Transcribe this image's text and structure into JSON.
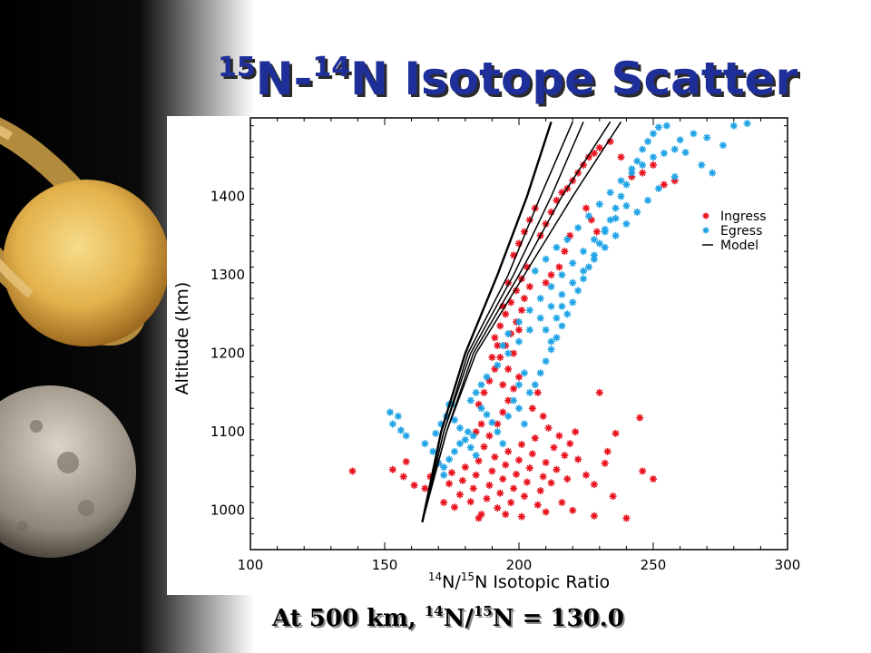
{
  "slide": {
    "title_sup1": "15",
    "title_n1": "N-",
    "title_sup2": "14",
    "title_rest": "N Isotope Scatter",
    "caption_pre": "At 500 km, ",
    "caption_sup1": "14",
    "caption_mid": "N/",
    "caption_sup2": "15",
    "caption_post": "N = 130.0"
  },
  "chart_data": {
    "type": "scatter",
    "xlabel_sup1": "14",
    "xlabel_mid": "N/",
    "xlabel_sup2": "15",
    "xlabel_post": "N Isotopic Ratio",
    "ylabel": "Altitude (km)",
    "xlim": [
      100,
      300
    ],
    "ylim": [
      950,
      1500
    ],
    "xticks": [
      "100",
      "150",
      "200",
      "250",
      "300"
    ],
    "yticks": [
      "1000",
      "1100",
      "1200",
      "1300",
      "1400"
    ],
    "legend_position": "right",
    "series": [
      {
        "name": "Ingress",
        "color": "#e8121e",
        "marker": "asterisk",
        "points": [
          [
            138,
            1050
          ],
          [
            153,
            1052
          ],
          [
            157,
            1043
          ],
          [
            158,
            1062
          ],
          [
            161,
            1032
          ],
          [
            165,
            1028
          ],
          [
            167,
            1043
          ],
          [
            170,
            1060
          ],
          [
            172,
            1010
          ],
          [
            174,
            1034
          ],
          [
            175,
            1048
          ],
          [
            176,
            1004
          ],
          [
            178,
            1020
          ],
          [
            179,
            1038
          ],
          [
            180,
            1055
          ],
          [
            182,
            1011
          ],
          [
            183,
            1028
          ],
          [
            184,
            1045
          ],
          [
            185,
            1063
          ],
          [
            186,
            995
          ],
          [
            187,
            1081
          ],
          [
            188,
            1015
          ],
          [
            189,
            1032
          ],
          [
            190,
            1050
          ],
          [
            191,
            1068
          ],
          [
            192,
            1003
          ],
          [
            193,
            1022
          ],
          [
            194,
            1040
          ],
          [
            195,
            1058
          ],
          [
            196,
            1075
          ],
          [
            197,
            1010
          ],
          [
            198,
            1028
          ],
          [
            199,
            1046
          ],
          [
            200,
            1064
          ],
          [
            201,
            1084
          ],
          [
            202,
            1018
          ],
          [
            203,
            1036
          ],
          [
            204,
            1054
          ],
          [
            205,
            1072
          ],
          [
            206,
            1092
          ],
          [
            207,
            1007
          ],
          [
            208,
            1025
          ],
          [
            209,
            1043
          ],
          [
            210,
            1061
          ],
          [
            212,
            1035
          ],
          [
            214,
            1052
          ],
          [
            216,
            1010
          ],
          [
            218,
            1040
          ],
          [
            220,
            1000
          ],
          [
            222,
            1065
          ],
          [
            225,
            1045
          ],
          [
            228,
            1033
          ],
          [
            232,
            1060
          ],
          [
            235,
            1018
          ],
          [
            240,
            990
          ],
          [
            246,
            1050
          ],
          [
            250,
            1040
          ],
          [
            245,
            1118
          ],
          [
            236,
            1098
          ],
          [
            233,
            1075
          ],
          [
            195,
            995
          ],
          [
            201,
            992
          ],
          [
            210,
            998
          ],
          [
            228,
            993
          ],
          [
            185,
            990
          ],
          [
            189,
            1095
          ],
          [
            192,
            1110
          ],
          [
            194,
            1125
          ],
          [
            196,
            1140
          ],
          [
            198,
            1155
          ],
          [
            200,
            1170
          ],
          [
            185,
            1135
          ],
          [
            187,
            1150
          ],
          [
            189,
            1165
          ],
          [
            191,
            1180
          ],
          [
            193,
            1195
          ],
          [
            195,
            1210
          ],
          [
            197,
            1225
          ],
          [
            199,
            1240
          ],
          [
            201,
            1255
          ],
          [
            191,
            1220
          ],
          [
            193,
            1235
          ],
          [
            195,
            1250
          ],
          [
            197,
            1265
          ],
          [
            199,
            1280
          ],
          [
            201,
            1295
          ],
          [
            203,
            1310
          ],
          [
            190,
            1195
          ],
          [
            192,
            1210
          ],
          [
            194,
            1260
          ],
          [
            196,
            1290
          ],
          [
            204,
            1285
          ],
          [
            202,
            1270
          ],
          [
            200,
            1230
          ],
          [
            198,
            1200
          ],
          [
            196,
            1180
          ],
          [
            194,
            1160
          ],
          [
            186,
            1110
          ],
          [
            184,
            1100
          ],
          [
            205,
            1130
          ],
          [
            207,
            1150
          ],
          [
            209,
            1120
          ],
          [
            211,
            1105
          ],
          [
            213,
            1080
          ],
          [
            215,
            1095
          ],
          [
            217,
            1070
          ],
          [
            219,
            1085
          ],
          [
            221,
            1100
          ],
          [
            230,
            1150
          ],
          [
            198,
            1325
          ],
          [
            200,
            1340
          ],
          [
            202,
            1355
          ],
          [
            204,
            1370
          ],
          [
            206,
            1385
          ],
          [
            208,
            1350
          ],
          [
            210,
            1365
          ],
          [
            212,
            1380
          ],
          [
            214,
            1395
          ],
          [
            216,
            1405
          ],
          [
            218,
            1410
          ],
          [
            220,
            1420
          ],
          [
            222,
            1430
          ],
          [
            224,
            1440
          ],
          [
            226,
            1450
          ],
          [
            228,
            1455
          ],
          [
            230,
            1462
          ],
          [
            234,
            1470
          ],
          [
            238,
            1450
          ],
          [
            242,
            1425
          ],
          [
            246,
            1430
          ],
          [
            250,
            1440
          ],
          [
            254,
            1415
          ],
          [
            258,
            1420
          ],
          [
            225,
            1385
          ],
          [
            227,
            1370
          ],
          [
            229,
            1355
          ],
          [
            219,
            1350
          ],
          [
            217,
            1330
          ],
          [
            215,
            1310
          ],
          [
            212,
            1300
          ],
          [
            210,
            1290
          ]
        ]
      },
      {
        "name": "Egress",
        "color": "#1ea3e6",
        "marker": "asterisk",
        "points": [
          [
            152,
            1125
          ],
          [
            155,
            1120
          ],
          [
            153,
            1110
          ],
          [
            156,
            1102
          ],
          [
            158,
            1095
          ],
          [
            165,
            1085
          ],
          [
            168,
            1075
          ],
          [
            170,
            1060
          ],
          [
            172,
            1045
          ],
          [
            174,
            1135
          ],
          [
            176,
            1115
          ],
          [
            178,
            1105
          ],
          [
            180,
            1090
          ],
          [
            182,
            1080
          ],
          [
            184,
            1070
          ],
          [
            186,
            1130
          ],
          [
            188,
            1122
          ],
          [
            190,
            1112
          ],
          [
            192,
            1100
          ],
          [
            194,
            1085
          ],
          [
            196,
            1120
          ],
          [
            198,
            1140
          ],
          [
            200,
            1130
          ],
          [
            202,
            1110
          ],
          [
            204,
            1150
          ],
          [
            206,
            1160
          ],
          [
            208,
            1175
          ],
          [
            210,
            1190
          ],
          [
            212,
            1205
          ],
          [
            214,
            1220
          ],
          [
            216,
            1235
          ],
          [
            218,
            1250
          ],
          [
            220,
            1265
          ],
          [
            222,
            1280
          ],
          [
            224,
            1295
          ],
          [
            226,
            1310
          ],
          [
            228,
            1325
          ],
          [
            230,
            1340
          ],
          [
            232,
            1355
          ],
          [
            234,
            1370
          ],
          [
            236,
            1385
          ],
          [
            238,
            1400
          ],
          [
            240,
            1415
          ],
          [
            242,
            1430
          ],
          [
            244,
            1445
          ],
          [
            246,
            1460
          ],
          [
            248,
            1470
          ],
          [
            250,
            1480
          ],
          [
            252,
            1488
          ],
          [
            255,
            1490
          ],
          [
            260,
            1472
          ],
          [
            265,
            1480
          ],
          [
            270,
            1475
          ],
          [
            276,
            1465
          ],
          [
            280,
            1490
          ],
          [
            285,
            1493
          ],
          [
            262,
            1456
          ],
          [
            268,
            1440
          ],
          [
            272,
            1430
          ],
          [
            258,
            1425
          ],
          [
            252,
            1410
          ],
          [
            248,
            1395
          ],
          [
            244,
            1380
          ],
          [
            240,
            1365
          ],
          [
            236,
            1350
          ],
          [
            232,
            1335
          ],
          [
            228,
            1320
          ],
          [
            224,
            1305
          ],
          [
            220,
            1290
          ],
          [
            216,
            1275
          ],
          [
            212,
            1260
          ],
          [
            208,
            1245
          ],
          [
            204,
            1230
          ],
          [
            200,
            1215
          ],
          [
            196,
            1200
          ],
          [
            192,
            1185
          ],
          [
            188,
            1170
          ],
          [
            186,
            1160
          ],
          [
            184,
            1150
          ],
          [
            182,
            1140
          ],
          [
            181,
            1100
          ],
          [
            183,
            1095
          ],
          [
            178,
            1085
          ],
          [
            176,
            1075
          ],
          [
            174,
            1065
          ],
          [
            172,
            1055
          ],
          [
            175,
            1135
          ],
          [
            173,
            1120
          ],
          [
            171,
            1110
          ],
          [
            169,
            1098
          ],
          [
            206,
            1305
          ],
          [
            210,
            1320
          ],
          [
            214,
            1335
          ],
          [
            218,
            1345
          ],
          [
            222,
            1360
          ],
          [
            226,
            1375
          ],
          [
            230,
            1390
          ],
          [
            234,
            1405
          ],
          [
            238,
            1420
          ],
          [
            242,
            1435
          ],
          [
            246,
            1440
          ],
          [
            250,
            1450
          ],
          [
            254,
            1455
          ],
          [
            258,
            1460
          ],
          [
            240,
            1388
          ],
          [
            236,
            1372
          ],
          [
            232,
            1358
          ],
          [
            228,
            1345
          ],
          [
            224,
            1330
          ],
          [
            220,
            1315
          ],
          [
            216,
            1300
          ],
          [
            212,
            1285
          ],
          [
            208,
            1270
          ],
          [
            204,
            1255
          ],
          [
            200,
            1240
          ],
          [
            196,
            1225
          ],
          [
            194,
            1210
          ],
          [
            210,
            1230
          ],
          [
            212,
            1215
          ],
          [
            214,
            1245
          ],
          [
            216,
            1260
          ],
          [
            200,
            1160
          ],
          [
            202,
            1175
          ]
        ]
      },
      {
        "name": "Model",
        "color": "#000000",
        "marker": "line",
        "lines": [
          [
            [
              164,
              985
            ],
            [
              171,
              1100
            ],
            [
              180,
              1200
            ],
            [
              192,
              1300
            ],
            [
              203,
              1400
            ],
            [
              212,
              1495
            ]
          ],
          [
            [
              164,
              985
            ],
            [
              172,
              1100
            ],
            [
              181,
              1200
            ],
            [
              196,
              1300
            ],
            [
              208,
              1400
            ],
            [
              220,
              1495
            ]
          ],
          [
            [
              164,
              985
            ],
            [
              172,
              1100
            ],
            [
              182,
              1200
            ],
            [
              198,
              1300
            ],
            [
              212,
              1400
            ],
            [
              224,
              1495
            ]
          ],
          [
            [
              164,
              985
            ],
            [
              173,
              1100
            ],
            [
              183,
              1200
            ],
            [
              200,
              1300
            ],
            [
              216,
              1400
            ],
            [
              234,
              1495
            ]
          ],
          [
            [
              164,
              985
            ],
            [
              173,
              1100
            ],
            [
              184,
              1200
            ],
            [
              202,
              1300
            ],
            [
              220,
              1400
            ],
            [
              238,
              1495
            ]
          ]
        ]
      }
    ]
  }
}
